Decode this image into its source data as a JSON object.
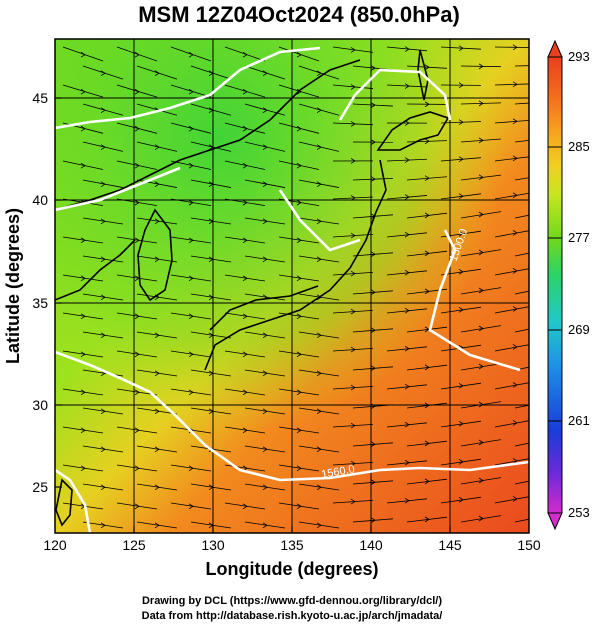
{
  "title": "MSM 12Z04Oct2024 (850.0hPa)",
  "x_axis": {
    "label": "Longitude (degrees)",
    "ticks": [
      "120",
      "125",
      "130",
      "135",
      "140",
      "145",
      "150"
    ],
    "range": [
      120,
      150
    ]
  },
  "y_axis": {
    "label": "Latitude  (degrees)",
    "ticks": [
      "25",
      "30",
      "35",
      "40",
      "45"
    ],
    "range": [
      22.4,
      47.6
    ]
  },
  "colorbar": {
    "ticks": [
      "293",
      "285",
      "277",
      "269",
      "261",
      "253"
    ],
    "range": [
      253,
      293
    ],
    "colors": [
      "#d22ccc",
      "#6a2ad8",
      "#1a3cd8",
      "#1f8fe6",
      "#22c8c8",
      "#2bd36a",
      "#6ed81e",
      "#c8e61e",
      "#f0d020",
      "#f7a020",
      "#f26a1e",
      "#e8401e"
    ]
  },
  "contours": [
    {
      "label": "1500.0",
      "value": 1500
    },
    {
      "label": "1560.0",
      "value": 1560
    }
  ],
  "credits": {
    "line1": "Drawing by DCL (https://www.gfd-dennou.org/library/dcl/)",
    "line2": "Data from http://database.rish.kyoto-u.ac.jp/arch/jmadata/"
  }
}
